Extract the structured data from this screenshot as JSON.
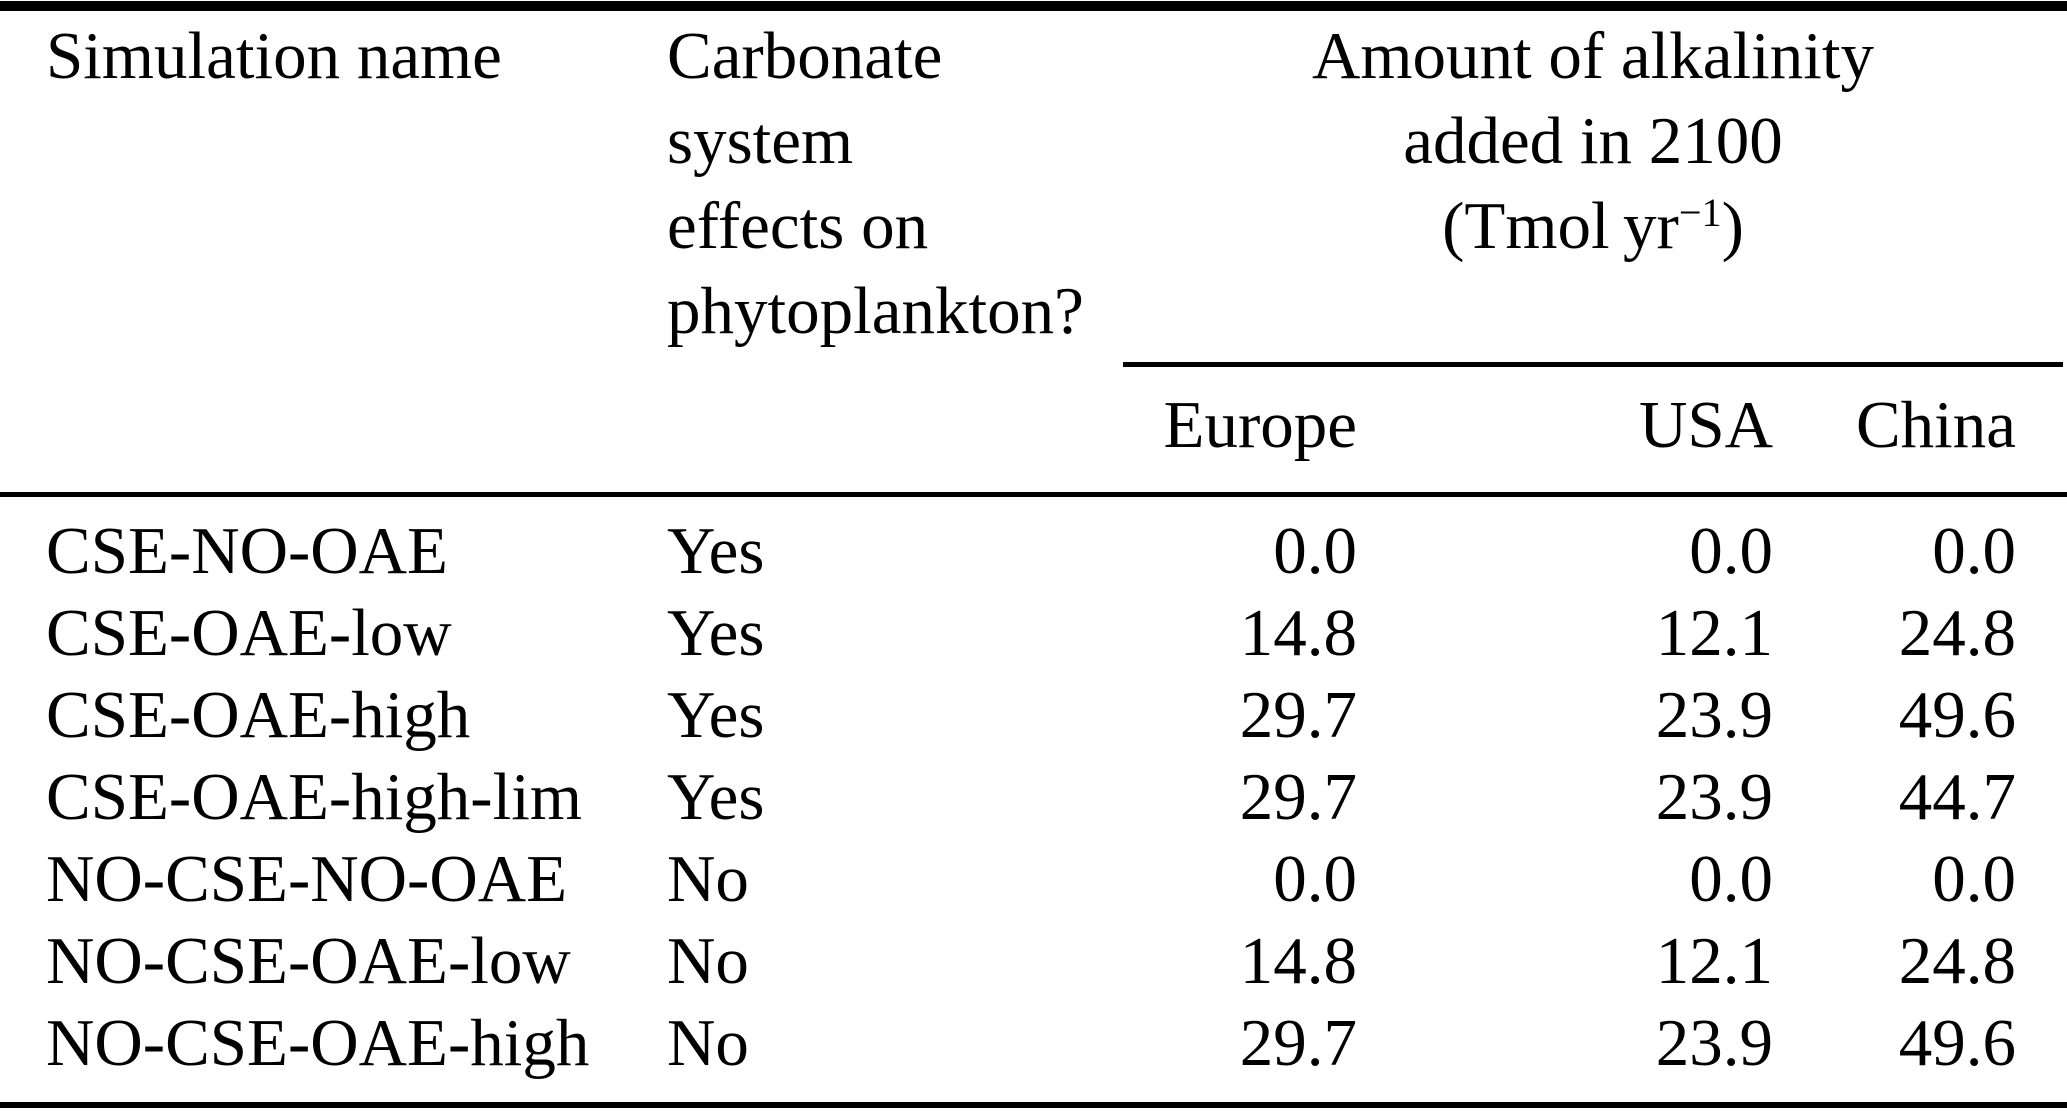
{
  "page": {
    "background_color": "#ffffff",
    "text_color": "#000000"
  },
  "table": {
    "headers": {
      "simulation_name": "Simulation name",
      "carbonate_lines": [
        "Carbonate",
        "system",
        "effects on",
        "phytoplankton?"
      ],
      "alkalinity_line1": "Amount of alkalinity",
      "alkalinity_line2": "added in 2100",
      "alkalinity_unit": {
        "open": "(Tmol yr",
        "exponent": "−1",
        "close": ")"
      }
    },
    "subheaders": [
      "Europe",
      "USA",
      "China"
    ],
    "rows": [
      {
        "name": "CSE-NO-OAE",
        "carbonate_effects": "Yes",
        "europe": "0.0",
        "usa": "0.0",
        "china": "0.0"
      },
      {
        "name": "CSE-OAE-low",
        "carbonate_effects": "Yes",
        "europe": "14.8",
        "usa": "12.1",
        "china": "24.8"
      },
      {
        "name": "CSE-OAE-high",
        "carbonate_effects": "Yes",
        "europe": "29.7",
        "usa": "23.9",
        "china": "49.6"
      },
      {
        "name": "CSE-OAE-high-lim",
        "carbonate_effects": "Yes",
        "europe": "29.7",
        "usa": "23.9",
        "china": "44.7"
      },
      {
        "name": "NO-CSE-NO-OAE",
        "carbonate_effects": "No",
        "europe": "0.0",
        "usa": "0.0",
        "china": "0.0"
      },
      {
        "name": "NO-CSE-OAE-low",
        "carbonate_effects": "No",
        "europe": "14.8",
        "usa": "12.1",
        "china": "24.8"
      },
      {
        "name": "NO-CSE-OAE-high",
        "carbonate_effects": "No",
        "europe": "29.7",
        "usa": "23.9",
        "china": "49.6"
      }
    ]
  }
}
